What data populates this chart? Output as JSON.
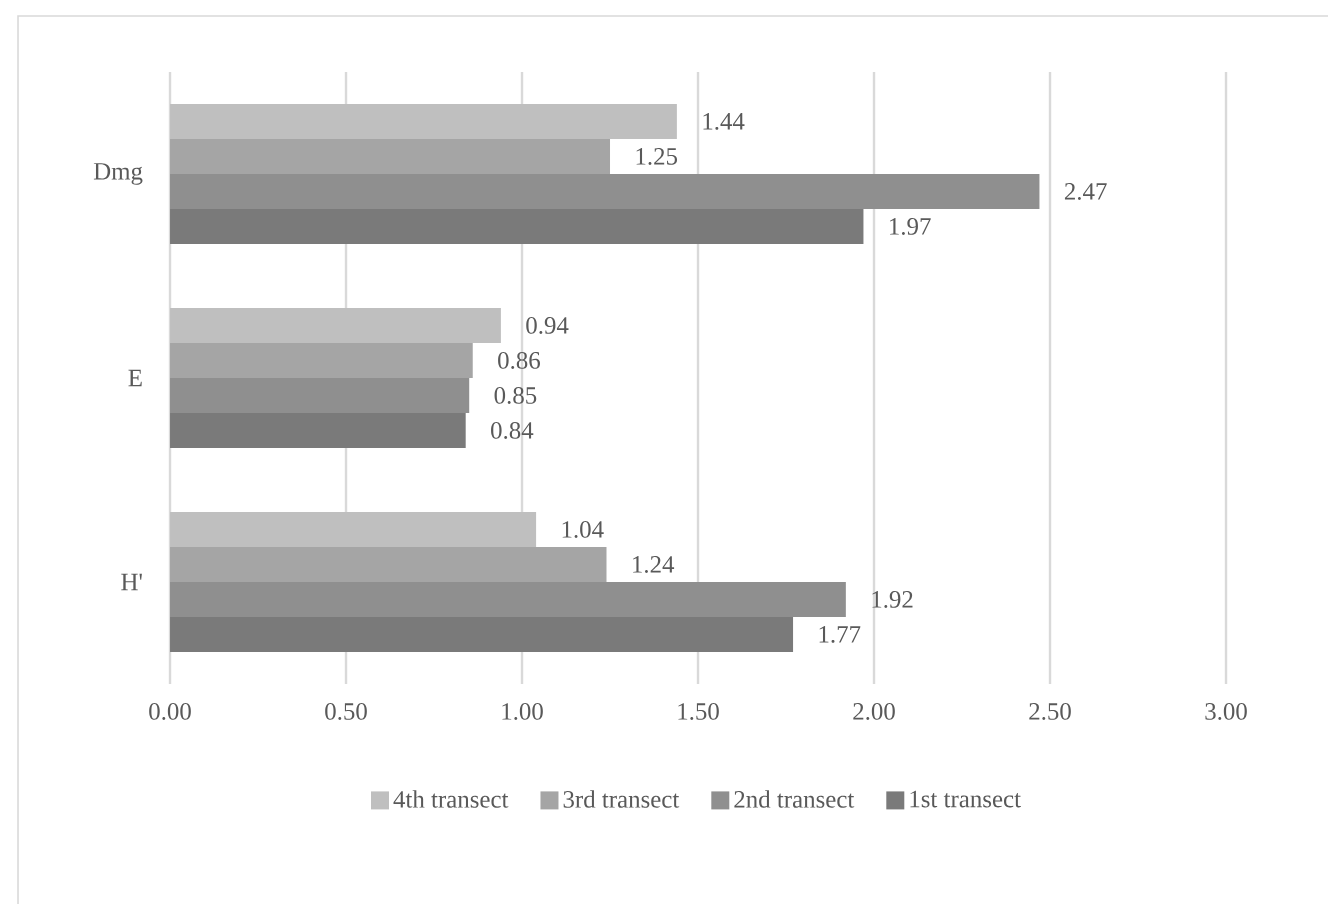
{
  "chart_data": {
    "type": "bar",
    "orientation": "horizontal",
    "categories": [
      "Dmg",
      "E",
      "H'"
    ],
    "series": [
      {
        "name": "4th transect",
        "color": "#bfbfbf",
        "values": [
          1.44,
          0.94,
          1.04
        ],
        "value_labels": [
          "1.44",
          "0.94",
          "1.04"
        ]
      },
      {
        "name": "3rd transect",
        "color": "#a5a5a5",
        "values": [
          1.25,
          0.86,
          1.24
        ],
        "value_labels": [
          "1.25",
          "0.86",
          "1.24"
        ]
      },
      {
        "name": "2nd transect",
        "color": "#8f8f8f",
        "values": [
          2.47,
          0.85,
          1.92
        ],
        "value_labels": [
          "2.47",
          "0.85",
          "1.92"
        ]
      },
      {
        "name": "1st transect",
        "color": "#7a7a7a",
        "values": [
          1.97,
          0.84,
          1.77
        ],
        "value_labels": [
          "1.97",
          "0.84",
          "1.77"
        ]
      }
    ],
    "xlim": [
      0,
      3
    ],
    "xticks": [
      {
        "value": 0,
        "label": "0.00"
      },
      {
        "value": 0.5,
        "label": "0.50"
      },
      {
        "value": 1,
        "label": "1.00"
      },
      {
        "value": 1.5,
        "label": "1.50"
      },
      {
        "value": 2,
        "label": "2.00"
      },
      {
        "value": 2.5,
        "label": "2.50"
      },
      {
        "value": 3,
        "label": "3.00"
      }
    ],
    "grid": "x",
    "legend": "bottom"
  }
}
